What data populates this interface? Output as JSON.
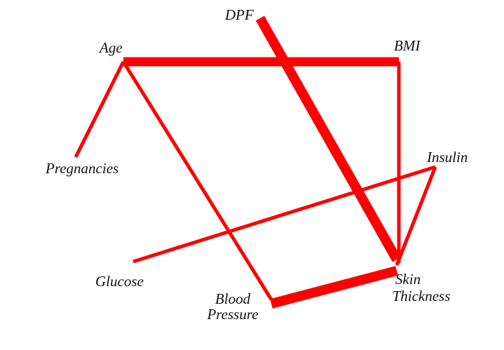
{
  "diagram": {
    "edge_color": "#ff0000",
    "nodes": {
      "dpf": "DPF",
      "age": "Age",
      "bmi": "BMI",
      "pregnancies": "Pregnancies",
      "insulin": "Insulin",
      "glucose": "Glucose",
      "blood_pressure_1": "Blood",
      "blood_pressure_2": "Pressure",
      "skin_thickness_1": "Skin",
      "skin_thickness_2": "Thickness"
    },
    "edges": [
      {
        "from": "Age",
        "to": "BMI",
        "weight": "strong"
      },
      {
        "from": "DPF",
        "to": "Skin Thickness",
        "weight": "strong"
      },
      {
        "from": "Blood Pressure",
        "to": "Skin Thickness",
        "weight": "strong"
      },
      {
        "from": "Age",
        "to": "Pregnancies",
        "weight": "normal"
      },
      {
        "from": "Age",
        "to": "Blood Pressure",
        "weight": "normal"
      },
      {
        "from": "BMI",
        "to": "Skin Thickness",
        "weight": "normal"
      },
      {
        "from": "Insulin",
        "to": "Glucose",
        "weight": "normal"
      },
      {
        "from": "Insulin",
        "to": "Skin Thickness",
        "weight": "normal"
      }
    ]
  }
}
